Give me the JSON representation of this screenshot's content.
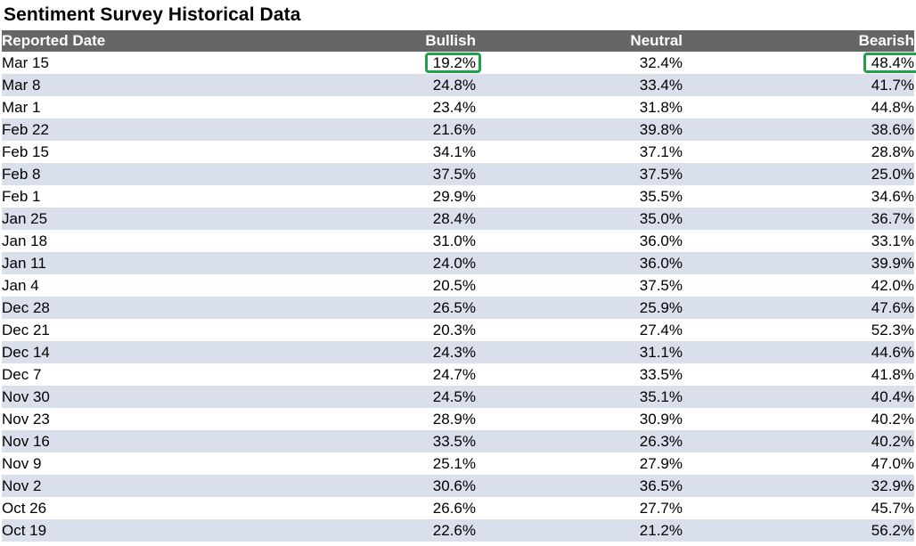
{
  "title": "Sentiment Survey Historical Data",
  "table": {
    "headers": {
      "date": "Reported Date",
      "bullish": "Bullish",
      "neutral": "Neutral",
      "bearish": "Bearish"
    },
    "rows": [
      {
        "date": "Mar 15",
        "bullish": "19.2%",
        "neutral": "32.4%",
        "bearish": "48.4%"
      },
      {
        "date": "Mar 8",
        "bullish": "24.8%",
        "neutral": "33.4%",
        "bearish": "41.7%"
      },
      {
        "date": "Mar 1",
        "bullish": "23.4%",
        "neutral": "31.8%",
        "bearish": "44.8%"
      },
      {
        "date": "Feb 22",
        "bullish": "21.6%",
        "neutral": "39.8%",
        "bearish": "38.6%"
      },
      {
        "date": "Feb 15",
        "bullish": "34.1%",
        "neutral": "37.1%",
        "bearish": "28.8%"
      },
      {
        "date": "Feb 8",
        "bullish": "37.5%",
        "neutral": "37.5%",
        "bearish": "25.0%"
      },
      {
        "date": "Feb 1",
        "bullish": "29.9%",
        "neutral": "35.5%",
        "bearish": "34.6%"
      },
      {
        "date": "Jan 25",
        "bullish": "28.4%",
        "neutral": "35.0%",
        "bearish": "36.7%"
      },
      {
        "date": "Jan 18",
        "bullish": "31.0%",
        "neutral": "36.0%",
        "bearish": "33.1%"
      },
      {
        "date": "Jan 11",
        "bullish": "24.0%",
        "neutral": "36.0%",
        "bearish": "39.9%"
      },
      {
        "date": "Jan 4",
        "bullish": "20.5%",
        "neutral": "37.5%",
        "bearish": "42.0%"
      },
      {
        "date": "Dec 28",
        "bullish": "26.5%",
        "neutral": "25.9%",
        "bearish": "47.6%"
      },
      {
        "date": "Dec 21",
        "bullish": "20.3%",
        "neutral": "27.4%",
        "bearish": "52.3%"
      },
      {
        "date": "Dec 14",
        "bullish": "24.3%",
        "neutral": "31.1%",
        "bearish": "44.6%"
      },
      {
        "date": "Dec 7",
        "bullish": "24.7%",
        "neutral": "33.5%",
        "bearish": "41.8%"
      },
      {
        "date": "Nov 30",
        "bullish": "24.5%",
        "neutral": "35.1%",
        "bearish": "40.4%"
      },
      {
        "date": "Nov 23",
        "bullish": "28.9%",
        "neutral": "30.9%",
        "bearish": "40.2%"
      },
      {
        "date": "Nov 16",
        "bullish": "33.5%",
        "neutral": "26.3%",
        "bearish": "40.2%"
      },
      {
        "date": "Nov 9",
        "bullish": "25.1%",
        "neutral": "27.9%",
        "bearish": "47.0%"
      },
      {
        "date": "Nov 2",
        "bullish": "30.6%",
        "neutral": "36.5%",
        "bearish": "32.9%"
      },
      {
        "date": "Oct 26",
        "bullish": "26.6%",
        "neutral": "27.7%",
        "bearish": "45.7%"
      },
      {
        "date": "Oct 19",
        "bullish": "22.6%",
        "neutral": "21.2%",
        "bearish": "56.2%"
      }
    ]
  },
  "colors": {
    "header_bg": "#666666",
    "header_text": "#ffffff",
    "stripe": "#d9dfeb",
    "highlight": "#21a049"
  }
}
